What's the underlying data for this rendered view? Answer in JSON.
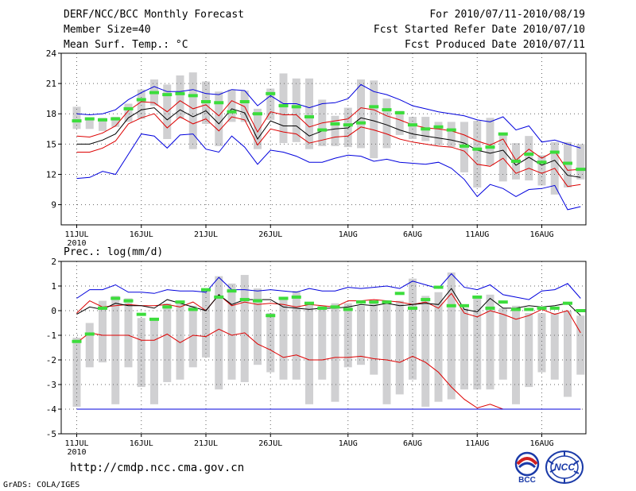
{
  "header": {
    "title": "DERF/NCC/BCC Monthly Forecast",
    "member_size": "Member Size=40",
    "variable": "Mean Surf. Temp.: °C",
    "period": "For 2010/07/11-2010/08/19",
    "fcst_started": "Fcst Started Refer Date 2010/07/10",
    "fcst_produced": "Fcst Produced Date 2010/07/11"
  },
  "footer": {
    "url": "http://cmdp.ncc.cma.gov.cn",
    "grads": "GrADS: COLA/IGES",
    "logo_bcc": "BCC",
    "logo_ncc": "NCC"
  },
  "colors": {
    "ensemble_box": "#d0d0d2",
    "member_dash": "#3cdd3c",
    "spread_outer": "#0000dd",
    "spread_inner": "#dd0000",
    "mean": "#000000",
    "grid": "#666666"
  },
  "chart_data": [
    {
      "type": "line",
      "title": "Mean Surf. Temp.: °C",
      "x_tick_labels": [
        "11JUL",
        "16JUL",
        "21JUL",
        "26JUL",
        "1AUG",
        "6AUG",
        "11AUG",
        "16AUG"
      ],
      "x_tick_days": [
        1,
        6,
        11,
        16,
        22,
        27,
        32,
        37
      ],
      "x_year_label": "2010",
      "ylim": [
        7,
        24
      ],
      "y_ticks": [
        9,
        12,
        15,
        18,
        21,
        24
      ],
      "days": 40,
      "series": [
        {
          "name": "max",
          "color": "#0000dd",
          "values": [
            18,
            17.9,
            18,
            18.4,
            19.4,
            20.1,
            20.7,
            20.2,
            20.2,
            20.4,
            20,
            19.9,
            20.4,
            20.3,
            18.8,
            19.8,
            19,
            19,
            18.6,
            19,
            19.1,
            19.5,
            20.9,
            20.2,
            19.9,
            19.4,
            18.8,
            18.5,
            18.2,
            18,
            17.8,
            17.4,
            17.2,
            17.7,
            16.4,
            16.8,
            15.2,
            15.4,
            15,
            14.6
          ]
        },
        {
          "name": "upper",
          "color": "#dd0000",
          "values": [
            15.8,
            15.7,
            16.1,
            16.8,
            18.3,
            19.2,
            19.1,
            18.2,
            19.3,
            18.5,
            18.9,
            17.8,
            19.3,
            18.7,
            16.2,
            18.2,
            17.9,
            17.9,
            16.7,
            17.1,
            17.3,
            17.5,
            18.6,
            18.4,
            17.8,
            17.4,
            16.9,
            16.6,
            16.5,
            16.3,
            15.9,
            15.3,
            14.9,
            15.5,
            13.4,
            14.5,
            13.6,
            14.3,
            12.4,
            12.5
          ]
        },
        {
          "name": "mean",
          "color": "#000000",
          "values": [
            15,
            15,
            15.4,
            16,
            17.6,
            18.4,
            18.6,
            17.4,
            18.4,
            17.7,
            18.3,
            17,
            18.5,
            18.1,
            15.5,
            17.3,
            16.8,
            16.8,
            15.8,
            16.3,
            16.5,
            16.6,
            17.6,
            17.3,
            16.9,
            16.4,
            16,
            15.8,
            15.6,
            15.4,
            15.1,
            14.4,
            14.1,
            14.4,
            12.9,
            13.7,
            12.9,
            13.4,
            11.9,
            11.7
          ]
        },
        {
          "name": "lower",
          "color": "#dd0000",
          "values": [
            14.2,
            14.2,
            14.6,
            15.3,
            17,
            17.6,
            18,
            16.6,
            17.7,
            17,
            17.5,
            16.3,
            17.7,
            17.4,
            14.9,
            16.5,
            16.2,
            16,
            15.1,
            15.4,
            15.7,
            15.8,
            16.7,
            16.4,
            16,
            15.5,
            15.2,
            15,
            14.8,
            14.7,
            14.3,
            13,
            12.8,
            13.6,
            12.1,
            12.6,
            12.1,
            12.6,
            10.8,
            11
          ]
        },
        {
          "name": "min",
          "color": "#0000dd",
          "values": [
            11.6,
            11.7,
            12.3,
            12,
            14,
            16,
            15.8,
            14.6,
            15.9,
            16,
            14.5,
            14.2,
            15.8,
            14.7,
            13,
            14.4,
            14.2,
            13.8,
            13.2,
            13.2,
            13.6,
            13.9,
            13.8,
            13.3,
            13.5,
            13.2,
            13.1,
            13,
            13.2,
            12.6,
            11.5,
            9.8,
            11,
            10.6,
            9.8,
            10.5,
            10.6,
            10.9,
            8.5,
            8.8
          ]
        }
      ],
      "box_top": [
        18.7,
        17.6,
        17.6,
        17.7,
        19,
        20.4,
        21.4,
        20.9,
        21.8,
        22.1,
        21.2,
        20.2,
        20.4,
        20.3,
        18.5,
        20.5,
        22,
        21.5,
        21.5,
        19.4,
        17.8,
        18.6,
        21.4,
        21.3,
        19.5,
        18.3,
        17.7,
        17.7,
        17.2,
        17.2,
        17.2,
        17.3,
        17.6,
        16.1,
        15.1,
        15.8,
        13.9,
        15.2,
        15.2,
        15
      ],
      "box_bottom": [
        16.5,
        16.5,
        16.3,
        16.7,
        17.2,
        17.5,
        18.8,
        15.5,
        17.5,
        14.5,
        17,
        14.8,
        17.2,
        17.2,
        14.5,
        17.4,
        15.1,
        15.2,
        14.5,
        14.8,
        14.8,
        14.7,
        14.6,
        13.6,
        14.6,
        15.9,
        15.5,
        15.3,
        14.9,
        14.7,
        12.2,
        10.7,
        12.9,
        11.3,
        11.5,
        11.4,
        10.9,
        10,
        10.7,
        11.5
      ],
      "member_dash": [
        17.3,
        17.5,
        17.4,
        17.5,
        18.5,
        19.4,
        20.1,
        19.9,
        20,
        19.8,
        19.2,
        19.1,
        18.2,
        19.2,
        18,
        20,
        18.8,
        18.7,
        17.7,
        16.4,
        17,
        16.9,
        17.1,
        18.7,
        18.4,
        18.1,
        16.9,
        16.5,
        16.7,
        16.4,
        14.8,
        14.5,
        14.7,
        16,
        13.3,
        14,
        13.2,
        14.2,
        13.1,
        12.5
      ]
    },
    {
      "type": "line",
      "title": "Prec.: log(mm/d)",
      "x_tick_labels": [
        "11JUL",
        "16JUL",
        "21JUL",
        "26JUL",
        "1AUG",
        "6AUG",
        "11AUG",
        "16AUG"
      ],
      "x_tick_days": [
        1,
        6,
        11,
        16,
        22,
        27,
        32,
        37
      ],
      "x_year_label": "2010",
      "ylim": [
        -5,
        2
      ],
      "y_ticks": [
        -5,
        -4,
        -3,
        -2,
        -1,
        0,
        1,
        2
      ],
      "days": 40,
      "series": [
        {
          "name": "max",
          "color": "#0000dd",
          "values": [
            0.5,
            0.85,
            0.85,
            1.05,
            0.75,
            0.75,
            0.7,
            0.85,
            0.8,
            0.8,
            0.75,
            1.35,
            0.85,
            0.85,
            0.8,
            0.85,
            0.8,
            0.75,
            0.9,
            0.8,
            0.8,
            0.95,
            0.9,
            0.95,
            1,
            0.9,
            1.2,
            1.05,
            0.9,
            1.5,
            0.95,
            0.85,
            1.05,
            0.65,
            0.55,
            0.45,
            0.8,
            0.85,
            1.1,
            0.5
          ]
        },
        {
          "name": "upper",
          "color": "#dd0000",
          "values": [
            -0.1,
            0.4,
            0.15,
            0.2,
            0.25,
            0.2,
            0.2,
            0.25,
            0.15,
            0.35,
            0,
            0.65,
            0.2,
            0.35,
            0.25,
            0.3,
            0.25,
            0.15,
            0.25,
            0.2,
            0.15,
            0.4,
            0.4,
            0.45,
            0.4,
            0.35,
            0.25,
            0.35,
            0.1,
            0.7,
            -0.1,
            -0.25,
            0,
            -0.15,
            -0.35,
            -0.2,
            0.05,
            -0.15,
            0,
            -0.9
          ]
        },
        {
          "name": "mean",
          "color": "#000000",
          "values": [
            -0.15,
            0.15,
            0.05,
            0.3,
            0.2,
            0.2,
            0.1,
            0.45,
            0.3,
            0.15,
            0,
            0.65,
            0.25,
            0.45,
            0.45,
            0.45,
            0.15,
            0.1,
            0.05,
            0.1,
            0.1,
            0.15,
            0.25,
            0.2,
            0.3,
            0.2,
            0.25,
            0.3,
            0.25,
            0.9,
            0.05,
            -0.05,
            0.5,
            0.1,
            0.1,
            0.2,
            0.15,
            0.2,
            0.3,
            -0.2
          ]
        },
        {
          "name": "lower",
          "color": "#dd0000",
          "values": [
            -1.3,
            -0.9,
            -1,
            -1,
            -1,
            -1.2,
            -1.2,
            -0.95,
            -1.3,
            -1,
            -1.05,
            -0.75,
            -1,
            -0.9,
            -1.35,
            -1.6,
            -1.9,
            -1.8,
            -2,
            -2,
            -1.9,
            -1.9,
            -1.85,
            -1.95,
            -2,
            -2.1,
            -1.85,
            -2.1,
            -2.5,
            -3.1,
            -3.6,
            -3.95,
            -3.8,
            -4,
            -4,
            -4,
            -4,
            -4,
            -4,
            -4
          ]
        },
        {
          "name": "min",
          "color": "#0000dd",
          "values": [
            -4,
            -4,
            -4,
            -4,
            -4,
            -4,
            -4,
            -4,
            -4,
            -4,
            -4,
            -4,
            -4,
            -4,
            -4,
            -4,
            -4,
            -4,
            -4,
            -4,
            -4,
            -4,
            -4,
            -4,
            -4,
            -4,
            -4,
            -4,
            -4,
            -4,
            -4,
            -4,
            -4,
            -4,
            -4,
            -4,
            -4,
            -4,
            -4,
            -4
          ]
        }
      ],
      "box_top": [
        -1.1,
        -0.5,
        0.4,
        0.6,
        0.5,
        -0.3,
        -0.3,
        0.3,
        0.4,
        0.2,
        0.9,
        1.4,
        1.1,
        1.45,
        0.9,
        -0.1,
        0.5,
        0.8,
        0.35,
        0.2,
        0.3,
        0.3,
        0.2,
        0.4,
        0.3,
        0.4,
        1.3,
        0.6,
        0.75,
        1.55,
        0.1,
        0.5,
        0.65,
        0.1,
        0.2,
        -0.1,
        -0.1,
        -0.1,
        0,
        -0.2
      ],
      "box_bottom": [
        -3.9,
        -2.3,
        -2.1,
        -3.8,
        -2.3,
        -3.1,
        -3.8,
        -2.9,
        -2.8,
        -2.3,
        -1.9,
        -3.2,
        -2.8,
        -2.9,
        -2.2,
        -2.5,
        -2.8,
        -2.8,
        -3.8,
        -2.8,
        -3.7,
        -2.3,
        -2.2,
        -2.6,
        -3.8,
        -3.4,
        -2.8,
        -3.9,
        -3.7,
        -3.6,
        -3.2,
        -3.2,
        -3.2,
        -2.8,
        -3.8,
        -3.1,
        -2.5,
        -2.8,
        -3.5,
        -2.6
      ],
      "member_dash": [
        -1.25,
        -0.95,
        0.1,
        0.5,
        0.4,
        -0.15,
        -0.35,
        0.15,
        0.35,
        0.05,
        0.85,
        0.55,
        0.8,
        0.45,
        0.4,
        -0.2,
        0.5,
        0.55,
        0.3,
        0.1,
        0.15,
        0.05,
        0.35,
        0.35,
        0.35,
        0.7,
        0.1,
        0.45,
        0.95,
        0.2,
        0.2,
        0.55,
        0.1,
        0.35,
        0.05,
        0.05,
        0.1,
        0.1,
        0.3,
        0
      ]
    }
  ]
}
